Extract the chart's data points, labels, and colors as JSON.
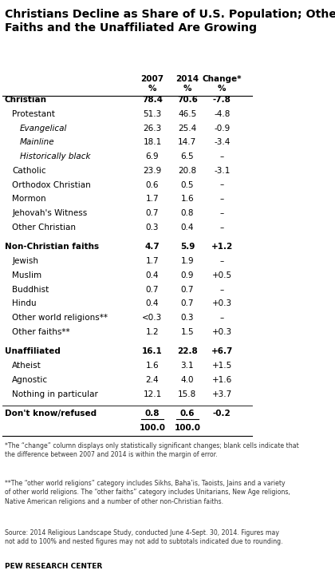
{
  "title": "Christians Decline as Share of U.S. Population; Other\nFaiths and the Unaffiliated Are Growing",
  "rows": [
    {
      "label": "Christian",
      "v2007": "78.4",
      "v2014": "70.6",
      "change": "-7.8",
      "indent": 0,
      "bold": true,
      "italic": false,
      "underline": false
    },
    {
      "label": "Protestant",
      "v2007": "51.3",
      "v2014": "46.5",
      "change": "-4.8",
      "indent": 1,
      "bold": false,
      "italic": false,
      "underline": false
    },
    {
      "label": "Evangelical",
      "v2007": "26.3",
      "v2014": "25.4",
      "change": "-0.9",
      "indent": 2,
      "bold": false,
      "italic": true,
      "underline": false
    },
    {
      "label": "Mainline",
      "v2007": "18.1",
      "v2014": "14.7",
      "change": "-3.4",
      "indent": 2,
      "bold": false,
      "italic": true,
      "underline": false
    },
    {
      "label": "Historically black",
      "v2007": "6.9",
      "v2014": "6.5",
      "change": "–",
      "indent": 2,
      "bold": false,
      "italic": true,
      "underline": false
    },
    {
      "label": "Catholic",
      "v2007": "23.9",
      "v2014": "20.8",
      "change": "-3.1",
      "indent": 1,
      "bold": false,
      "italic": false,
      "underline": false
    },
    {
      "label": "Orthodox Christian",
      "v2007": "0.6",
      "v2014": "0.5",
      "change": "–",
      "indent": 1,
      "bold": false,
      "italic": false,
      "underline": false
    },
    {
      "label": "Mormon",
      "v2007": "1.7",
      "v2014": "1.6",
      "change": "–",
      "indent": 1,
      "bold": false,
      "italic": false,
      "underline": false
    },
    {
      "label": "Jehovah's Witness",
      "v2007": "0.7",
      "v2014": "0.8",
      "change": "–",
      "indent": 1,
      "bold": false,
      "italic": false,
      "underline": false
    },
    {
      "label": "Other Christian",
      "v2007": "0.3",
      "v2014": "0.4",
      "change": "–",
      "indent": 1,
      "bold": false,
      "italic": false,
      "underline": false
    },
    {
      "label": "Non-Christian faiths",
      "v2007": "4.7",
      "v2014": "5.9",
      "change": "+1.2",
      "indent": 0,
      "bold": true,
      "italic": false,
      "underline": false
    },
    {
      "label": "Jewish",
      "v2007": "1.7",
      "v2014": "1.9",
      "change": "–",
      "indent": 1,
      "bold": false,
      "italic": false,
      "underline": false
    },
    {
      "label": "Muslim",
      "v2007": "0.4",
      "v2014": "0.9",
      "change": "+0.5",
      "indent": 1,
      "bold": false,
      "italic": false,
      "underline": false
    },
    {
      "label": "Buddhist",
      "v2007": "0.7",
      "v2014": "0.7",
      "change": "–",
      "indent": 1,
      "bold": false,
      "italic": false,
      "underline": false
    },
    {
      "label": "Hindu",
      "v2007": "0.4",
      "v2014": "0.7",
      "change": "+0.3",
      "indent": 1,
      "bold": false,
      "italic": false,
      "underline": false
    },
    {
      "label": "Other world religions**",
      "v2007": "<0.3",
      "v2014": "0.3",
      "change": "–",
      "indent": 1,
      "bold": false,
      "italic": false,
      "underline": false
    },
    {
      "label": "Other faiths**",
      "v2007": "1.2",
      "v2014": "1.5",
      "change": "+0.3",
      "indent": 1,
      "bold": false,
      "italic": false,
      "underline": false
    },
    {
      "label": "Unaffiliated",
      "v2007": "16.1",
      "v2014": "22.8",
      "change": "+6.7",
      "indent": 0,
      "bold": true,
      "italic": false,
      "underline": false
    },
    {
      "label": "Atheist",
      "v2007": "1.6",
      "v2014": "3.1",
      "change": "+1.5",
      "indent": 1,
      "bold": false,
      "italic": false,
      "underline": false
    },
    {
      "label": "Agnostic",
      "v2007": "2.4",
      "v2014": "4.0",
      "change": "+1.6",
      "indent": 1,
      "bold": false,
      "italic": false,
      "underline": false
    },
    {
      "label": "Nothing in particular",
      "v2007": "12.1",
      "v2014": "15.8",
      "change": "+3.7",
      "indent": 1,
      "bold": false,
      "italic": false,
      "underline": false
    },
    {
      "label": "Don't know/refused",
      "v2007": "0.8",
      "v2014": "0.6",
      "change": "-0.2",
      "indent": 0,
      "bold": true,
      "italic": false,
      "underline": true
    },
    {
      "label": "",
      "v2007": "100.0",
      "v2014": "100.0",
      "change": "",
      "indent": 0,
      "bold": true,
      "italic": false,
      "underline": false
    }
  ],
  "footnote1": "*The “change” column displays only statistically significant changes; blank cells indicate that\nthe difference between 2007 and 2014 is within the margin of error.",
  "footnote2": "**The “other world religions” category includes Sikhs, Baha’is, Taoists, Jains and a variety\nof other world religions. The “other faiths” category includes Unitarians, New Age religions,\nNative American religions and a number of other non-Christian faiths.",
  "footnote3": "Source: 2014 Religious Landscape Study, conducted June 4-Sept. 30, 2014. Figures may\nnot add to 100% and nested figures may not add to subtotals indicated due to rounding.",
  "pew": "PEW RESEARCH CENTER",
  "bg_color": "#ffffff",
  "text_color": "#000000",
  "separator_rows": [
    0,
    10,
    17,
    21
  ],
  "indent_sizes": [
    0.0,
    0.03,
    0.06
  ]
}
